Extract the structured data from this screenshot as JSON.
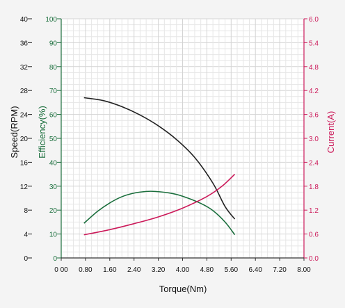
{
  "chart_data": {
    "type": "line",
    "xlabel": "Torque(Nm)",
    "xlim": [
      0,
      8
    ],
    "x_ticks": [
      "0 00",
      "0.80",
      "1.60",
      "2.40",
      "3.20",
      "4.00",
      "4.80",
      "5.60",
      "6.40",
      "7.20",
      "8.00"
    ],
    "grid": true,
    "axes": {
      "speed": {
        "label": "Speed(RPM)",
        "ylim": [
          0,
          40
        ],
        "ticks": [
          "0",
          "4",
          "8",
          "12",
          "16",
          "20",
          "24",
          "28",
          "32",
          "36",
          "40"
        ],
        "color": "#222222"
      },
      "efficiency": {
        "label": "Efficiency(%)",
        "ylim": [
          0,
          100
        ],
        "ticks": [
          "0",
          "10",
          "20",
          "30",
          "40",
          "50",
          "60",
          "70",
          "80",
          "90",
          "100"
        ],
        "color": "#1a6e3c"
      },
      "current": {
        "label": "Current(A)",
        "ylim": [
          0,
          6
        ],
        "ticks": [
          "0.0",
          "0.6",
          "1.2",
          "1.8",
          "2.4",
          "3.0",
          "3.6",
          "4.2",
          "4.8",
          "5.4",
          "6.0"
        ],
        "color": "#cc1a5a"
      }
    },
    "series": [
      {
        "axis": "speed",
        "color": "#222222",
        "x": [
          0.75,
          1.4,
          2.0,
          2.6,
          3.2,
          3.8,
          4.4,
          5.0,
          5.4,
          5.72
        ],
        "y": [
          26.8,
          26.3,
          25.3,
          23.9,
          22.1,
          19.8,
          16.8,
          12.5,
          8.6,
          6.5
        ]
      },
      {
        "axis": "efficiency",
        "color": "#1a6e3c",
        "x": [
          0.75,
          1.2,
          1.6,
          2.0,
          2.4,
          2.8,
          3.1,
          3.6,
          4.0,
          4.6,
          5.0,
          5.4,
          5.72
        ],
        "y": [
          14.5,
          19.5,
          23.0,
          25.6,
          27.1,
          27.8,
          27.8,
          27.1,
          25.8,
          22.8,
          19.8,
          15.0,
          9.7
        ]
      },
      {
        "axis": "current",
        "color": "#cc1a5a",
        "x": [
          0.75,
          1.6,
          2.4,
          3.2,
          4.0,
          4.8,
          5.3,
          5.72
        ],
        "y": [
          0.58,
          0.71,
          0.86,
          1.03,
          1.25,
          1.54,
          1.8,
          2.1
        ]
      }
    ]
  }
}
